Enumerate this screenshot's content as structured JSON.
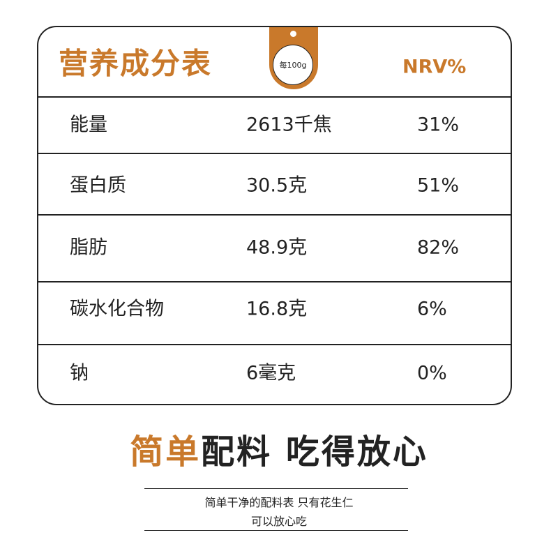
{
  "header": {
    "title": "营养成分表",
    "per": "每100g",
    "nrv": "NRV%"
  },
  "table": {
    "rows": [
      [
        "能量",
        "2613千焦",
        "31%"
      ],
      [
        "蛋白质",
        "30.5克",
        "51%"
      ],
      [
        "脂肪",
        "48.9克",
        "82%"
      ],
      [
        "碳水化合物",
        "16.8克",
        "6%"
      ],
      [
        "钠",
        "6毫克",
        "0%"
      ]
    ]
  },
  "slogan": {
    "highlight": "简单",
    "rest": "配料 吃得放心"
  },
  "note": {
    "lines": [
      "简单干净的配料表 只有花生仁",
      "可以放心吃"
    ]
  }
}
